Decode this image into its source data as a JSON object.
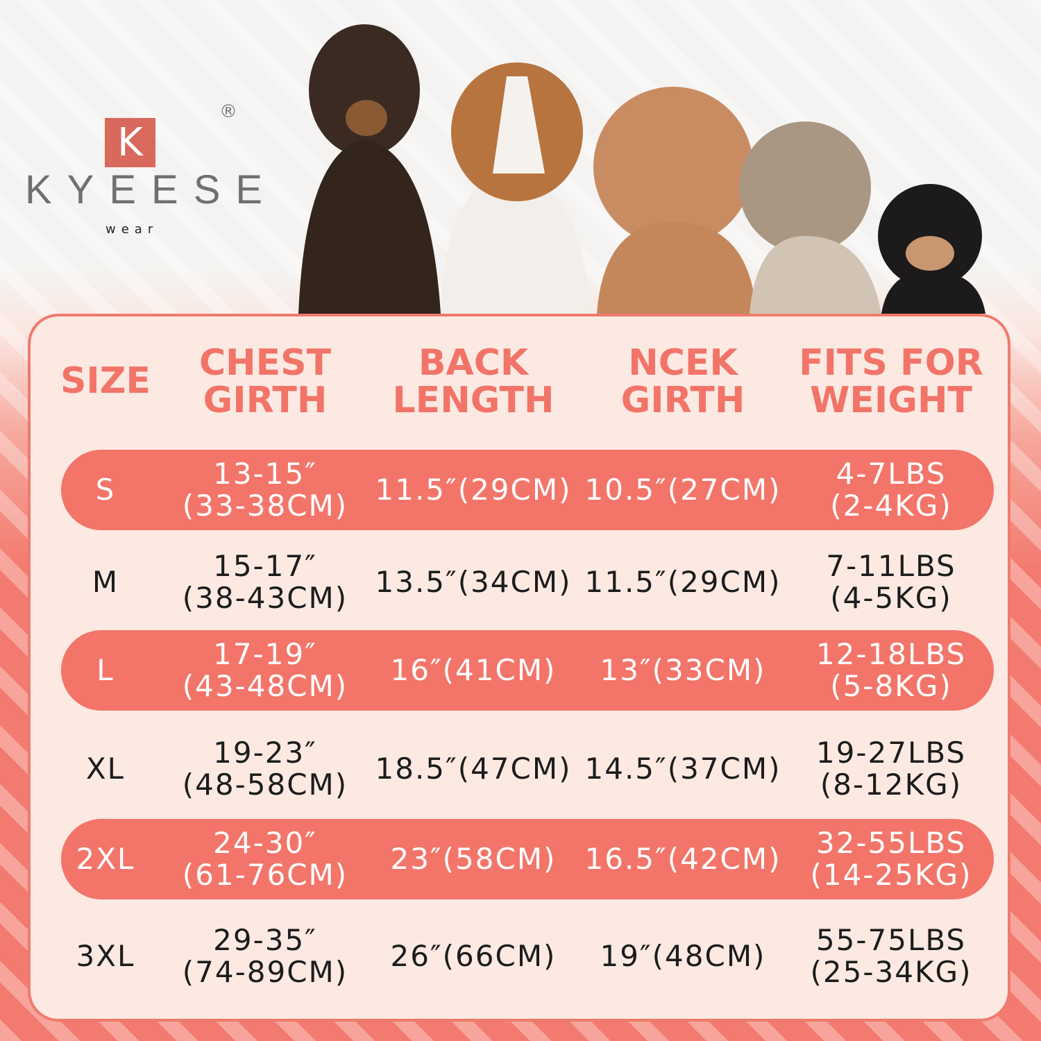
{
  "brand": {
    "name": "KYEESE",
    "sub": "wear",
    "mark": "K",
    "registered": "®",
    "accent": "#d9695d"
  },
  "colors": {
    "header": "#f27468",
    "band": "#f3756a",
    "card": "#fbe9e2"
  },
  "table": {
    "headers": [
      [
        "SIZE"
      ],
      [
        "CHEST",
        "GIRTH"
      ],
      [
        "BACK",
        "LENGTH"
      ],
      [
        "NCEK",
        "GIRTH"
      ],
      [
        "FITS FOR",
        "WEIGHT"
      ]
    ],
    "rows": [
      {
        "size": "S",
        "chest": [
          "13-15″",
          "(33-38CM)"
        ],
        "back": "11.5″(29CM)",
        "neck": "10.5″(27CM)",
        "weight": [
          "4-7LBS",
          "(2-4KG)"
        ]
      },
      {
        "size": "M",
        "chest": [
          "15-17″",
          "(38-43CM)"
        ],
        "back": "13.5″(34CM)",
        "neck": "11.5″(29CM)",
        "weight": [
          "7-11LBS",
          "(4-5KG)"
        ]
      },
      {
        "size": "L",
        "chest": [
          "17-19″",
          "(43-48CM)"
        ],
        "back": "16″(41CM)",
        "neck": "13″(33CM)",
        "weight": [
          "12-18LBS",
          "(5-8KG)"
        ]
      },
      {
        "size": "XL",
        "chest": [
          "19-23″",
          "(48-58CM)"
        ],
        "back": "18.5″(47CM)",
        "neck": "14.5″(37CM)",
        "weight": [
          "19-27LBS",
          "(8-12KG)"
        ]
      },
      {
        "size": "2XL",
        "chest": [
          "24-30″",
          "(61-76CM)"
        ],
        "back": "23″(58CM)",
        "neck": "16.5″(42CM)",
        "weight": [
          "32-55LBS",
          "(14-25KG)"
        ]
      },
      {
        "size": "3XL",
        "chest": [
          "29-35″",
          "(74-89CM)"
        ],
        "back": "26″(66CM)",
        "neck": "19″(48CM)",
        "weight": [
          "55-75LBS",
          "(25-34KG)"
        ]
      }
    ]
  }
}
